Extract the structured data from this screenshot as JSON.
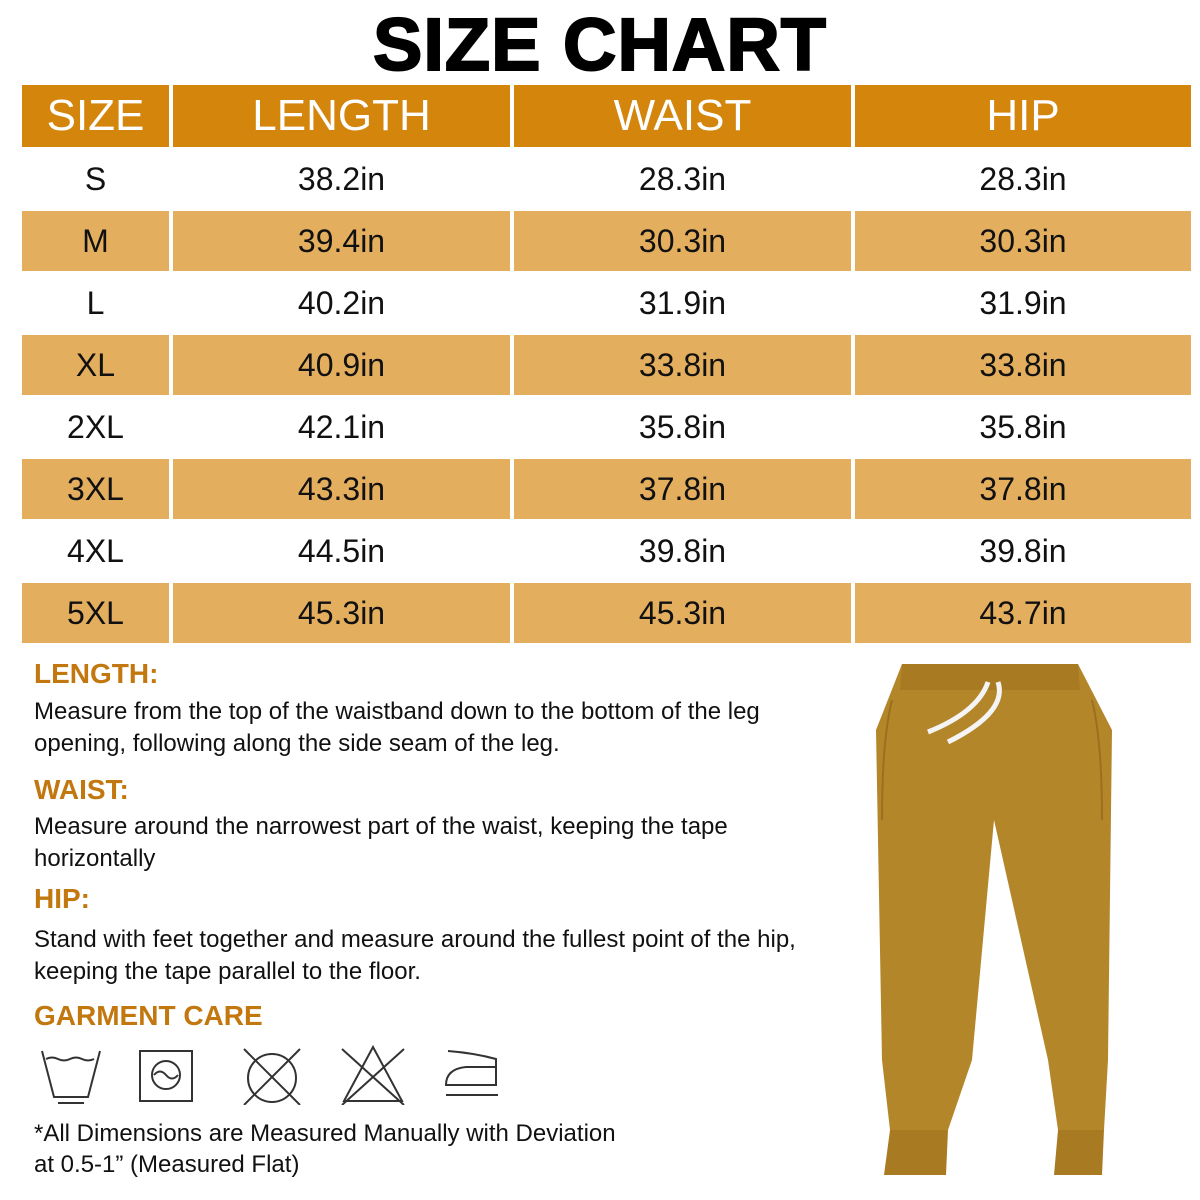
{
  "title": "SIZE CHART",
  "table": {
    "headers": [
      "SIZE",
      "LENGTH",
      "WAIST",
      "HIP"
    ],
    "rows": [
      [
        "S",
        "38.2in",
        "28.3in",
        "28.3in"
      ],
      [
        "M",
        "39.4in",
        "30.3in",
        "30.3in"
      ],
      [
        "L",
        "40.2in",
        "31.9in",
        "31.9in"
      ],
      [
        "XL",
        "40.9in",
        "33.8in",
        "33.8in"
      ],
      [
        "2XL",
        "42.1in",
        "35.8in",
        "35.8in"
      ],
      [
        "3XL",
        "43.3in",
        "37.8in",
        "37.8in"
      ],
      [
        "4XL",
        "44.5in",
        "39.8in",
        "39.8in"
      ],
      [
        "5XL",
        "45.3in",
        "45.3in",
        "43.7in"
      ]
    ]
  },
  "guide": {
    "length_heading": "LENGTH:",
    "length_text": "Measure from the top of the waistband down to the bottom of the leg opening, following along the side seam of the leg.",
    "waist_heading": "WAIST:",
    "waist_text": "Measure around the narrowest part of the waist, keeping the tape horizontally",
    "hip_heading": "HIP:",
    "hip_text": "Stand with feet together and measure around the fullest point of the hip, keeping the tape parallel to the floor.",
    "care_heading": "GARMENT CARE"
  },
  "care_icons": [
    "wash-tub-icon",
    "tumble-dry-icon",
    "do-not-dry-clean-icon",
    "do-not-bleach-icon",
    "iron-icon"
  ],
  "note_line1": "*All Dimensions are Measured Manually with Deviation",
  "note_line2": "at 0.5-1” (Measured Flat)",
  "colors": {
    "header": "#D4850C",
    "alt_row": "#E3AE5E",
    "heading": "#C2780E",
    "garment": "#B4862A"
  }
}
